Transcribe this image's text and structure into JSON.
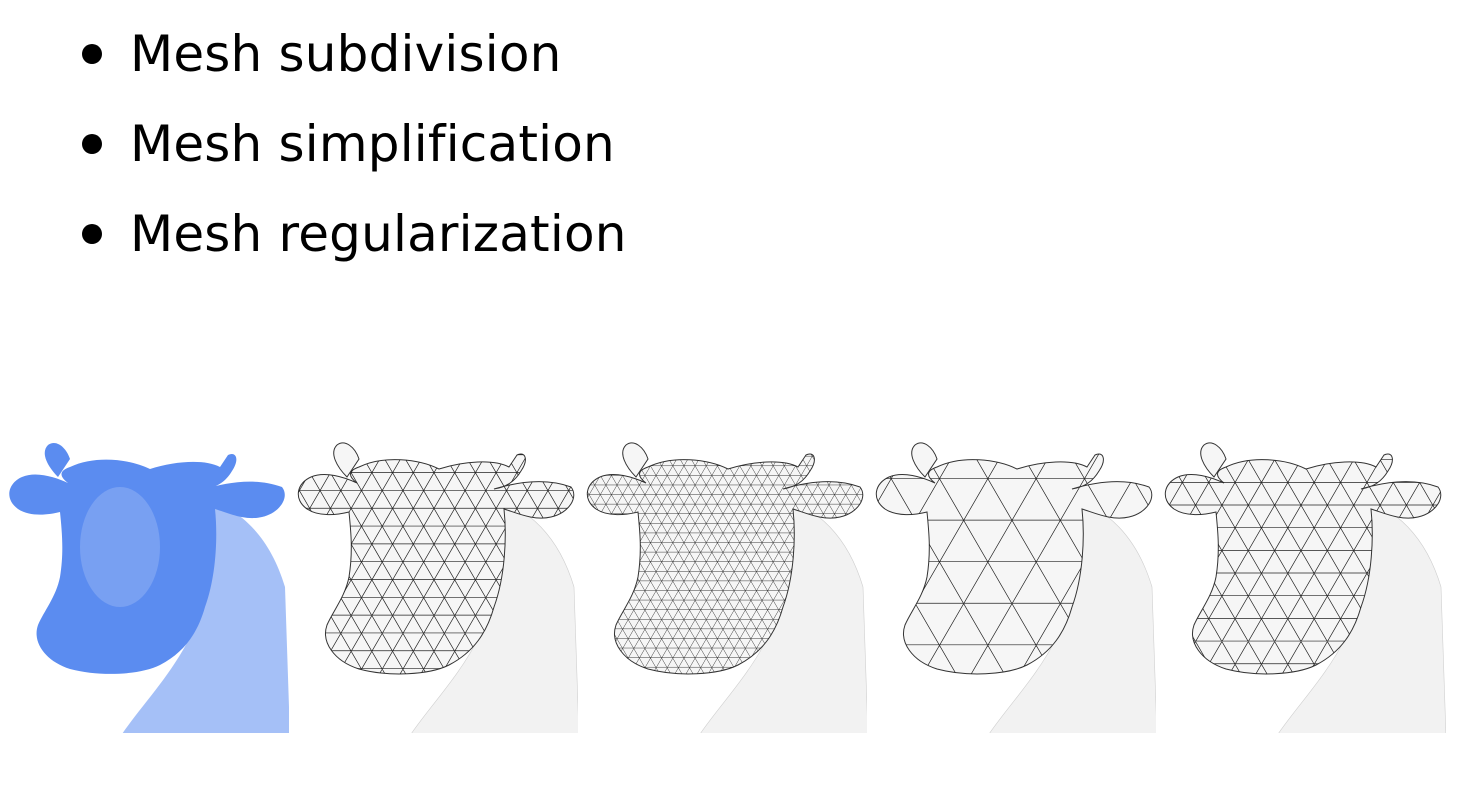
{
  "slide": {
    "bullets": [
      {
        "text": "Mesh subdivision"
      },
      {
        "text": "Mesh simplification"
      },
      {
        "text": "Mesh regularization"
      }
    ]
  },
  "figure": {
    "panels": [
      {
        "name": "smooth-cow",
        "style": "shaded",
        "color": "#5b8cf0"
      },
      {
        "name": "wireframe-cow-medium",
        "style": "wireframe",
        "density": 14
      },
      {
        "name": "wireframe-cow-dense",
        "style": "wireframe",
        "density": 26
      },
      {
        "name": "wireframe-cow-coarse",
        "style": "wireframe",
        "density": 6
      },
      {
        "name": "wireframe-cow-regular",
        "style": "wireframe",
        "density": 11
      }
    ]
  }
}
